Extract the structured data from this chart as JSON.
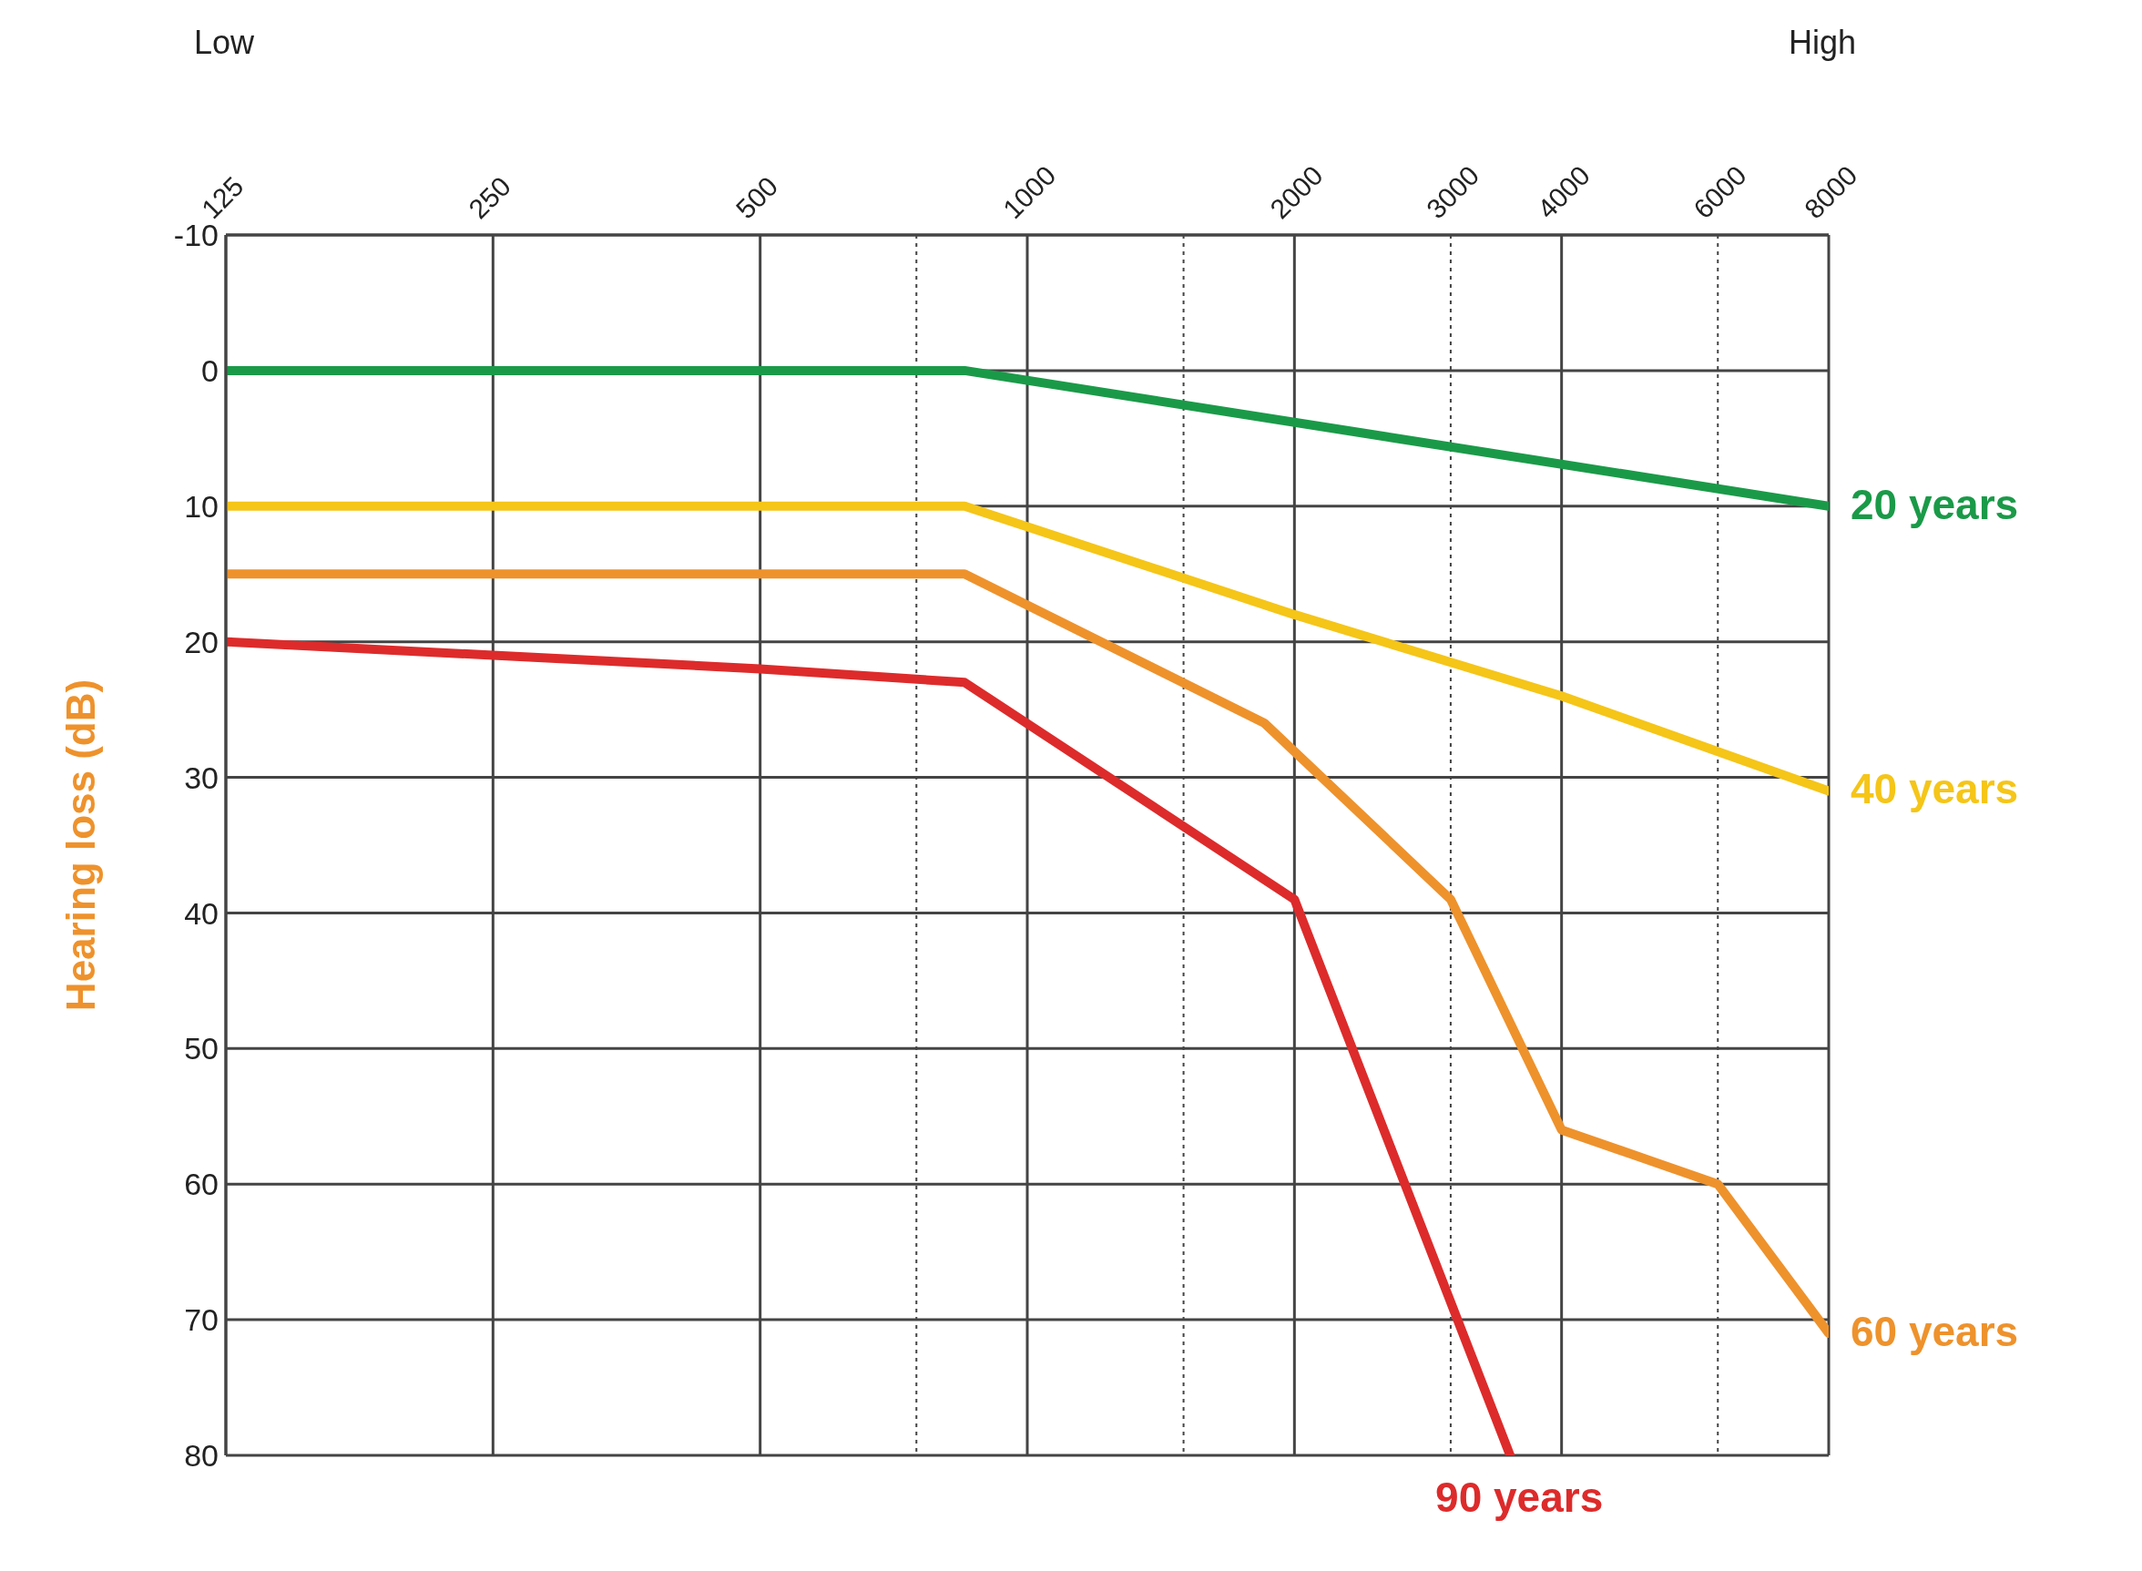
{
  "chart_data": {
    "type": "line",
    "ylabel": "Hearing loss (dB)",
    "annotations": [
      "Low",
      "High"
    ],
    "xlim": [
      125,
      8000
    ],
    "xticks": [
      125,
      250,
      500,
      {
        "value": 750,
        "label": null
      },
      1000,
      {
        "value": 1500,
        "label": null
      },
      2000,
      3000,
      4000,
      6000,
      8000
    ],
    "ylim": [
      80,
      -10
    ],
    "yticks": [
      -10,
      0,
      10,
      20,
      30,
      40,
      50,
      60,
      70,
      80
    ],
    "log": "x",
    "grid": true,
    "marker": "none",
    "line_style": "solid",
    "series": [
      {
        "name": "20 years",
        "color": "#1a9a48",
        "x": [
          125,
          250,
          500,
          850,
          8000
        ],
        "values": [
          0,
          0,
          0,
          0,
          10
        ]
      },
      {
        "name": "40 years",
        "color": "#f5c518",
        "x": [
          125,
          250,
          500,
          850,
          2000,
          4000,
          8000
        ],
        "values": [
          10,
          10,
          10,
          10,
          18,
          24,
          31
        ]
      },
      {
        "name": "60 years",
        "color": "#ee922c",
        "x": [
          125,
          250,
          500,
          850,
          1850,
          3000,
          4000,
          6000,
          8000
        ],
        "values": [
          15,
          15,
          15,
          15,
          26,
          39,
          56,
          60,
          71
        ]
      },
      {
        "name": "90 years",
        "color": "#dd2b2b",
        "x": [
          125,
          250,
          500,
          850,
          2000,
          3500
        ],
        "values": [
          20,
          21,
          22,
          23,
          39,
          80
        ]
      }
    ]
  }
}
